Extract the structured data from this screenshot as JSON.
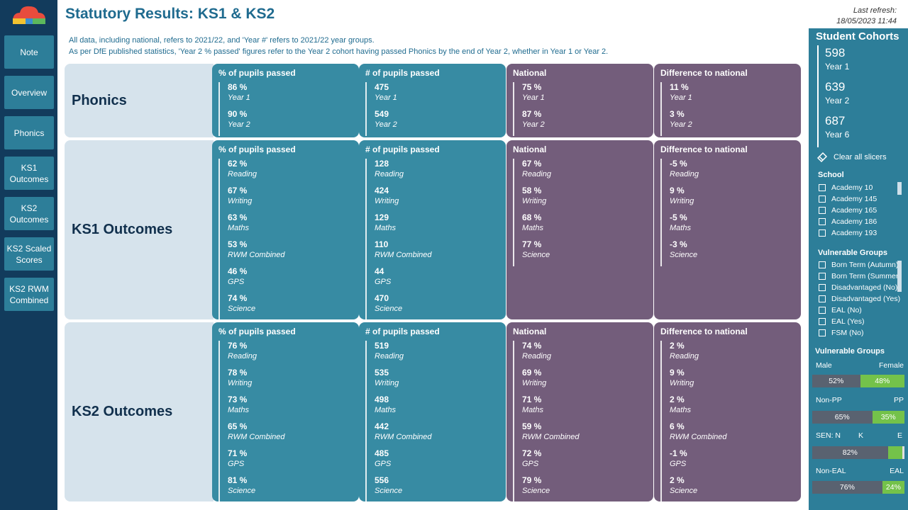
{
  "header": {
    "title": "Statutory Results: KS1 & KS2",
    "refresh_label": "Last refresh:",
    "refresh_time": "18/05/2023 11:44"
  },
  "nav": [
    {
      "label": "Note"
    },
    {
      "label": "Overview"
    },
    {
      "label": "Phonics"
    },
    {
      "label": "KS1 Outcomes"
    },
    {
      "label": "KS2 Outcomes"
    },
    {
      "label": "KS2 Scaled Scores"
    },
    {
      "label": "KS2 RWM Combined"
    }
  ],
  "notes": [
    "All data, including national, refers to 2021/22, and 'Year #' refers to 2021/22 year groups.",
    "As per DfE published statistics, 'Year 2 % passed' figures refer to the Year 2 cohort having passed Phonics by the end of Year 2, whether in Year 1 or Year 2."
  ],
  "columns": [
    "% of pupils passed",
    "# of pupils passed",
    "National",
    "Difference to national"
  ],
  "sections": [
    {
      "label": "Phonics",
      "cards": [
        [
          {
            "v": "86 %",
            "l": "Year 1"
          },
          {
            "v": "90 %",
            "l": "Year 2"
          }
        ],
        [
          {
            "v": "475",
            "l": "Year 1"
          },
          {
            "v": "549",
            "l": "Year 2"
          }
        ],
        [
          {
            "v": "75 %",
            "l": "Year 1"
          },
          {
            "v": "87 %",
            "l": "Year 2"
          }
        ],
        [
          {
            "v": "11 %",
            "l": "Year 1"
          },
          {
            "v": "3 %",
            "l": "Year 2"
          }
        ]
      ]
    },
    {
      "label": "KS1 Outcomes",
      "cards": [
        [
          {
            "v": "62 %",
            "l": "Reading"
          },
          {
            "v": "67 %",
            "l": "Writing"
          },
          {
            "v": "63 %",
            "l": "Maths"
          },
          {
            "v": "53 %",
            "l": "RWM Combined"
          },
          {
            "v": "46 %",
            "l": "GPS"
          },
          {
            "v": "74 %",
            "l": "Science"
          }
        ],
        [
          {
            "v": "128",
            "l": "Reading"
          },
          {
            "v": "424",
            "l": "Writing"
          },
          {
            "v": "129",
            "l": "Maths"
          },
          {
            "v": "110",
            "l": "RWM Combined"
          },
          {
            "v": "44",
            "l": "GPS"
          },
          {
            "v": "470",
            "l": "Science"
          }
        ],
        [
          {
            "v": "67 %",
            "l": "Reading"
          },
          {
            "v": "58 %",
            "l": "Writing"
          },
          {
            "v": "68 %",
            "l": "Maths"
          },
          {
            "v": "77 %",
            "l": "Science"
          }
        ],
        [
          {
            "v": "-5 %",
            "l": "Reading"
          },
          {
            "v": "9 %",
            "l": "Writing"
          },
          {
            "v": "-5 %",
            "l": "Maths"
          },
          {
            "v": "-3 %",
            "l": "Science"
          }
        ]
      ]
    },
    {
      "label": "KS2 Outcomes",
      "cards": [
        [
          {
            "v": "76 %",
            "l": "Reading"
          },
          {
            "v": "78 %",
            "l": "Writing"
          },
          {
            "v": "73 %",
            "l": "Maths"
          },
          {
            "v": "65 %",
            "l": "RWM Combined"
          },
          {
            "v": "71 %",
            "l": "GPS"
          },
          {
            "v": "81 %",
            "l": "Science"
          }
        ],
        [
          {
            "v": "519",
            "l": "Reading"
          },
          {
            "v": "535",
            "l": "Writing"
          },
          {
            "v": "498",
            "l": "Maths"
          },
          {
            "v": "442",
            "l": "RWM Combined"
          },
          {
            "v": "485",
            "l": "GPS"
          },
          {
            "v": "556",
            "l": "Science"
          }
        ],
        [
          {
            "v": "74 %",
            "l": "Reading"
          },
          {
            "v": "69 %",
            "l": "Writing"
          },
          {
            "v": "71 %",
            "l": "Maths"
          },
          {
            "v": "59 %",
            "l": "RWM Combined"
          },
          {
            "v": "72 %",
            "l": "GPS"
          },
          {
            "v": "79 %",
            "l": "Science"
          }
        ],
        [
          {
            "v": "2 %",
            "l": "Reading"
          },
          {
            "v": "9 %",
            "l": "Writing"
          },
          {
            "v": "2 %",
            "l": "Maths"
          },
          {
            "v": "6 %",
            "l": "RWM Combined"
          },
          {
            "v": "-1 %",
            "l": "GPS"
          },
          {
            "v": "2 %",
            "l": "Science"
          }
        ]
      ]
    }
  ],
  "right_panel": {
    "title": "Student Cohorts",
    "cohorts": [
      {
        "value": "598",
        "label": "Year 1"
      },
      {
        "value": "639",
        "label": "Year 2"
      },
      {
        "value": "687",
        "label": "Year 6"
      }
    ],
    "clear_label": "Clear all slicers",
    "school_header": "School",
    "schools": [
      "Academy 10",
      "Academy 145",
      "Academy 165",
      "Academy 186",
      "Academy 193"
    ],
    "vg_header": "Vulnerable Groups",
    "vg_items": [
      "Born Term (Autumn)",
      "Born Term (Summer)",
      "Disadvantaged (No)",
      "Disadvantaged (Yes)",
      "EAL (No)",
      "EAL (Yes)",
      "FSM (No)"
    ],
    "vg2_header": "Vulnerable Groups",
    "bars": [
      {
        "labels": [
          "Male",
          "Female"
        ],
        "left_value": 52,
        "left_text": "52%",
        "right_text": "48%"
      },
      {
        "labels": [
          "Non-PP",
          "PP"
        ],
        "left_value": 65,
        "left_text": "65%",
        "right_text": "35%"
      },
      {
        "labels": [
          "SEN: N",
          "K",
          "E"
        ],
        "left_value": 82,
        "left_text": "82%",
        "k_value": 16,
        "e_value": 2
      },
      {
        "labels": [
          "Non-EAL",
          "EAL"
        ],
        "left_value": 76,
        "left_text": "76%",
        "right_text": "24%"
      }
    ]
  },
  "colors": {
    "nav_bg": "#123b5c",
    "nav_button": "#2d7e99",
    "title": "#1f6b8f",
    "teal_card": "#378ba3",
    "purple_card": "#735d7b",
    "section_label_bg": "#d6e3ec",
    "panel_bg": "#2d7e99",
    "bar_dark": "#596270",
    "bar_green": "#74c24a"
  }
}
